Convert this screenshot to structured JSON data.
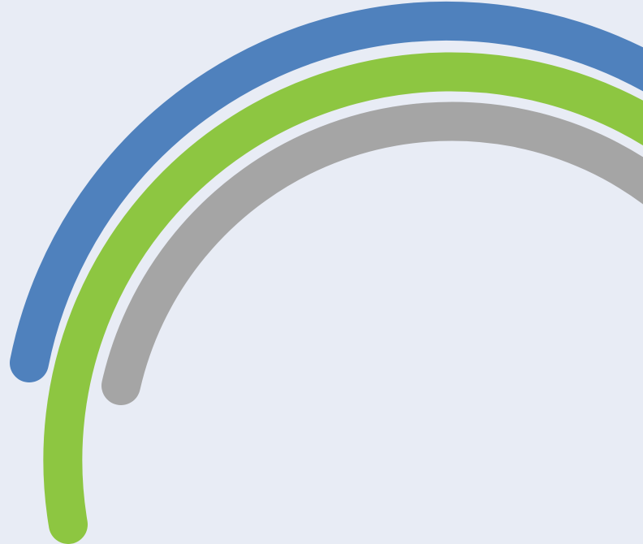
{
  "background_color": "#E8ECF5",
  "arcs": [
    {
      "name": "blue-arc",
      "color": "#4F81BD"
    },
    {
      "name": "green-arc",
      "color": "#8DC641"
    },
    {
      "name": "gray-arc",
      "color": "#A5A5A5"
    }
  ]
}
